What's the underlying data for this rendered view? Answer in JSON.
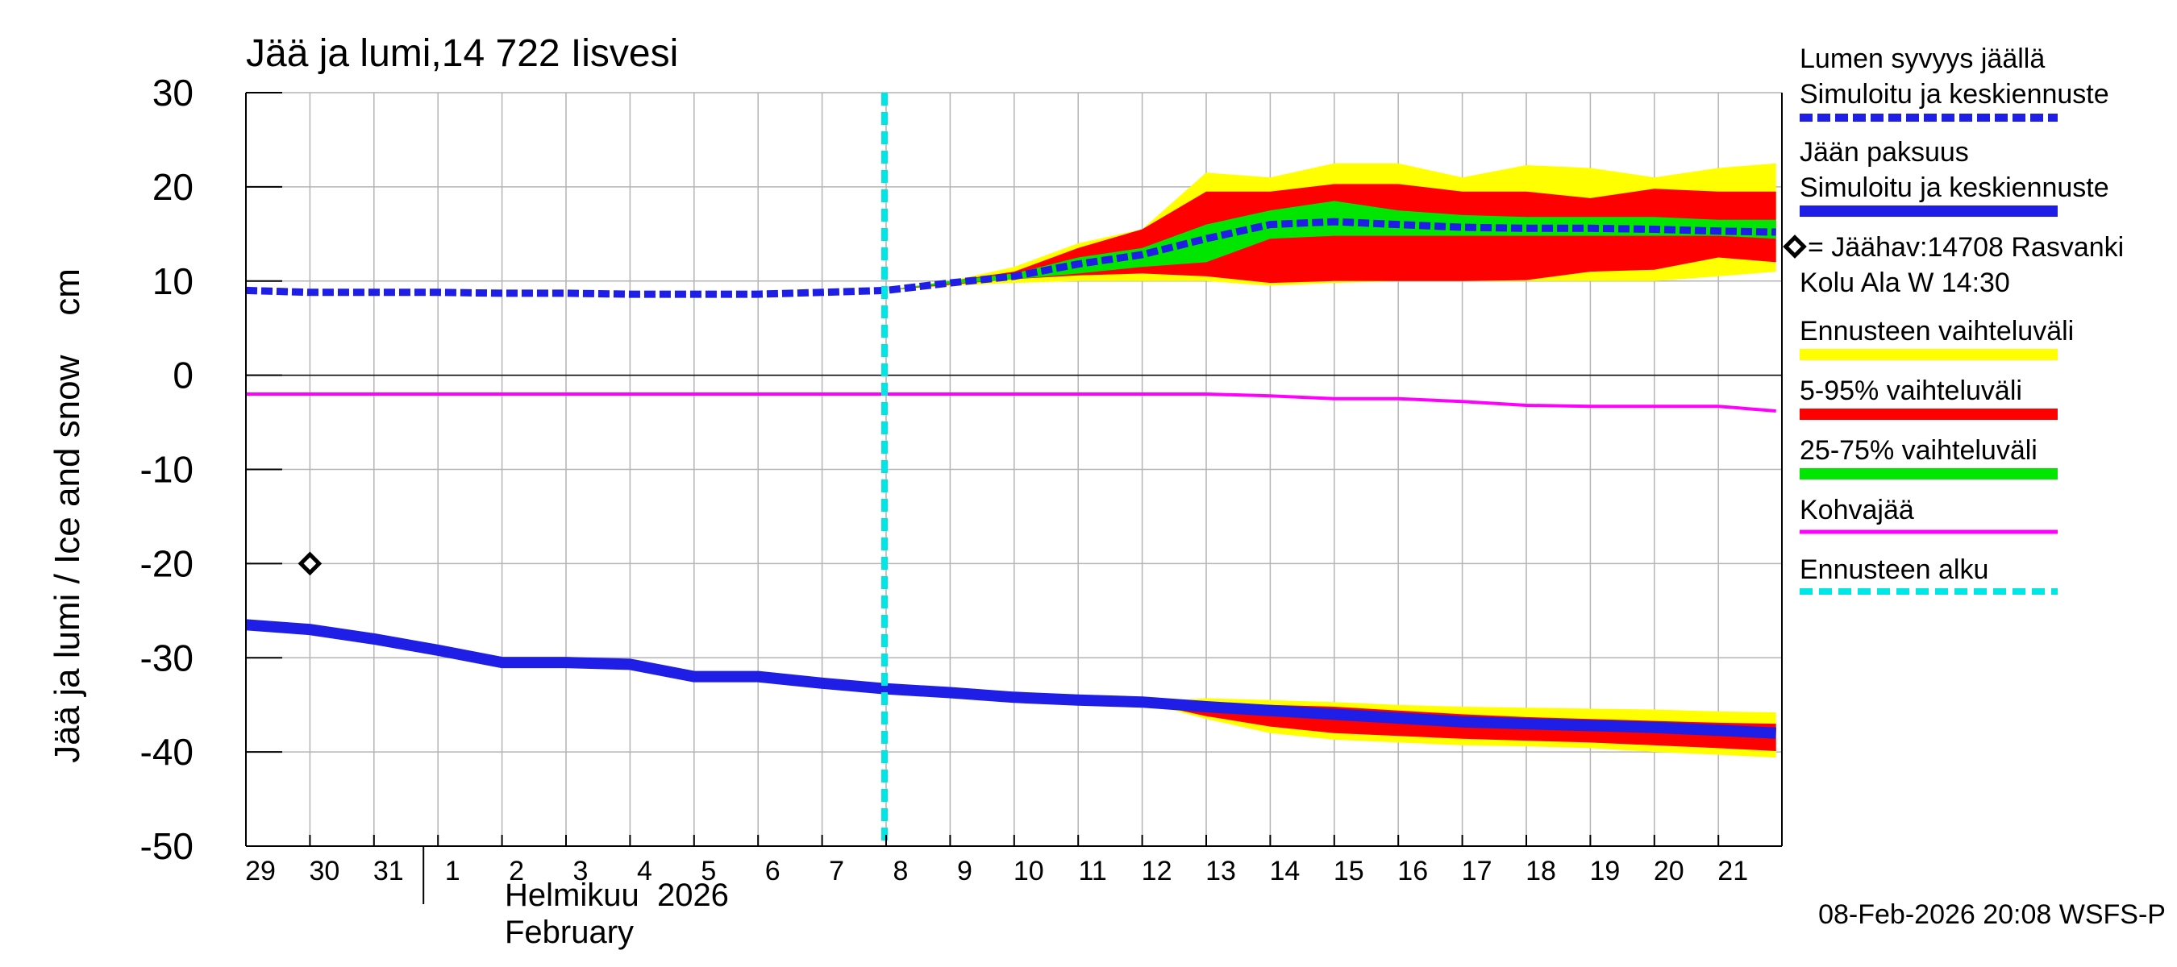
{
  "chart_data": {
    "type": "area",
    "title": "Jää ja lumi,14 722 Iisvesi",
    "ylabel": "Jää ja lumi / Ice and snow    cm",
    "ylim": [
      -50,
      30
    ],
    "yticks": [
      30,
      20,
      10,
      0,
      -10,
      -20,
      -30,
      -40,
      -50
    ],
    "ytick_labels": [
      "30",
      "20",
      "10",
      "0",
      "-10",
      "-20",
      "-30",
      "-40",
      "-50"
    ],
    "xlim": [
      0,
      24
    ],
    "xtick_labels": [
      {
        "x": 0,
        "label": "29"
      },
      {
        "x": 1,
        "label": "30"
      },
      {
        "x": 2,
        "label": "31"
      },
      {
        "x": 3,
        "label": "1"
      },
      {
        "x": 4,
        "label": "2"
      },
      {
        "x": 5,
        "label": "3"
      },
      {
        "x": 6,
        "label": "4"
      },
      {
        "x": 7,
        "label": "5"
      },
      {
        "x": 8,
        "label": "6"
      },
      {
        "x": 9,
        "label": "7"
      },
      {
        "x": 10,
        "label": "8"
      },
      {
        "x": 11,
        "label": "9"
      },
      {
        "x": 12,
        "label": "10"
      },
      {
        "x": 13,
        "label": "11"
      },
      {
        "x": 14,
        "label": "12"
      },
      {
        "x": 15,
        "label": "13"
      },
      {
        "x": 16,
        "label": "14"
      },
      {
        "x": 17,
        "label": "15"
      },
      {
        "x": 18,
        "label": "16"
      },
      {
        "x": 19,
        "label": "17"
      },
      {
        "x": 20,
        "label": "18"
      },
      {
        "x": 21,
        "label": "19"
      },
      {
        "x": 22,
        "label": "20"
      },
      {
        "x": 23,
        "label": "21"
      }
    ],
    "month_separator_x": 3,
    "month_label_fi": "Helmikuu  2026",
    "month_label_en": "February",
    "forecast_start_x": 10,
    "timestamp": "08-Feb-2026 20:08 WSFS-P",
    "legend": {
      "snow_header": "Lumen syvyys jäällä",
      "snow_label": "Simuloitu ja keskiennuste",
      "ice_header": "Jään paksuus",
      "ice_label": "Simuloitu ja keskiennuste",
      "obs_label": "= Jäähav:14708 Rasvanki",
      "obs_label2": "Kolu Ala W 14:30",
      "yellow_label": "Ennusteen vaihteluväli",
      "red_label": "5-95% vaihteluväli",
      "green_label": "25-75% vaihteluväli",
      "kohva_label": "Kohvajää",
      "start_label": "Ennusteen alku"
    },
    "colors": {
      "snow": "#1e1ee6",
      "ice": "#1e1ee6",
      "yellow": "#ffff00",
      "red": "#ff0000",
      "green": "#00e600",
      "kohva": "#ff00ff",
      "start": "#00e5e5"
    },
    "snow_depth": {
      "x": [
        0,
        1,
        2,
        3,
        4,
        5,
        6,
        7,
        8,
        9,
        10,
        11,
        12,
        13,
        14,
        15,
        16,
        17,
        18,
        19,
        20,
        21,
        22,
        23,
        23.9
      ],
      "y": [
        9,
        8.8,
        8.8,
        8.8,
        8.7,
        8.7,
        8.6,
        8.6,
        8.6,
        8.8,
        9,
        9.8,
        10.5,
        11.8,
        12.8,
        14.5,
        16,
        16.3,
        16,
        15.7,
        15.6,
        15.6,
        15.5,
        15.3,
        15.2
      ]
    },
    "snow_yellow_band": {
      "x": [
        10,
        11,
        12,
        13,
        14,
        15,
        16,
        17,
        18,
        19,
        20,
        21,
        22,
        23,
        23.9
      ],
      "low": [
        9,
        9.5,
        9.8,
        10,
        10,
        10,
        9.5,
        9.8,
        10,
        10,
        10,
        10,
        10,
        10.5,
        11
      ],
      "high": [
        9,
        10,
        11.5,
        14,
        15.5,
        21.5,
        21,
        22.5,
        22.5,
        21,
        22.3,
        22,
        21,
        22,
        22.5
      ]
    },
    "snow_red_band": {
      "x": [
        10,
        11,
        12,
        13,
        14,
        15,
        16,
        17,
        18,
        19,
        20,
        21,
        22,
        23,
        23.9
      ],
      "low": [
        9,
        9.6,
        10.2,
        10.6,
        10.8,
        10.5,
        9.8,
        10,
        10,
        10,
        10.1,
        11,
        11.2,
        12.5,
        12
      ]
    },
    "snow_red_band_high": [
      9,
      10,
      11,
      13.5,
      15.5,
      19.5,
      19.5,
      20.3,
      20.3,
      19.5,
      19.5,
      18.8,
      19.8,
      19.5,
      19.5
    ],
    "snow_green_band": {
      "x": [
        10,
        11,
        12,
        13,
        14,
        15,
        16,
        17,
        18,
        19,
        20,
        21,
        22,
        23,
        23.9
      ],
      "low": [
        9,
        9.7,
        10.2,
        10.8,
        11.5,
        12,
        14.5,
        14.8,
        14.8,
        14.8,
        14.8,
        14.8,
        14.8,
        14.8,
        14.5
      ],
      "high": [
        9,
        10,
        10.8,
        12.5,
        13.5,
        16,
        17.5,
        18.5,
        17.5,
        17,
        16.8,
        16.8,
        16.8,
        16.5,
        16.5
      ]
    },
    "kohva": {
      "x": [
        0,
        14,
        15,
        16,
        17,
        18,
        19,
        20,
        21,
        22,
        23,
        23.9
      ],
      "y": [
        -2,
        -2,
        -2,
        -2.2,
        -2.5,
        -2.5,
        -2.8,
        -3.2,
        -3.3,
        -3.3,
        -3.3,
        -3.8
      ]
    },
    "ice_thickness": {
      "x": [
        0,
        1,
        2,
        3,
        4,
        5,
        6,
        7,
        8,
        9,
        10,
        11,
        12,
        13,
        14,
        15,
        16,
        17,
        18,
        19,
        20,
        21,
        22,
        23,
        23.9
      ],
      "y": [
        -26.5,
        -27,
        -28,
        -29.2,
        -30.5,
        -30.5,
        -30.7,
        -32,
        -32,
        -32.7,
        -33.3,
        -33.7,
        -34.2,
        -34.5,
        -34.7,
        -35.2,
        -35.6,
        -36,
        -36.4,
        -36.8,
        -37,
        -37.2,
        -37.4,
        -37.7,
        -38
      ]
    },
    "ice_yellow_band": {
      "x": [
        14,
        15,
        16,
        17,
        18,
        19,
        20,
        21,
        22,
        23,
        23.9
      ],
      "high": [
        -34.7,
        -34.3,
        -34.5,
        -34.7,
        -35,
        -35.2,
        -35.3,
        -35.4,
        -35.5,
        -35.7,
        -35.8
      ],
      "low": [
        -34.7,
        -36.5,
        -38,
        -38.7,
        -39,
        -39.3,
        -39.4,
        -39.6,
        -40,
        -40.3,
        -40.6
      ]
    },
    "ice_red_band": {
      "x": [
        14,
        15,
        16,
        17,
        18,
        19,
        20,
        21,
        22,
        23,
        23.9
      ],
      "high": [
        -34.7,
        -34.8,
        -35,
        -35.2,
        -35.6,
        -36,
        -36.3,
        -36.5,
        -36.7,
        -36.9,
        -37
      ],
      "low": [
        -34.7,
        -36.2,
        -37.3,
        -38,
        -38.3,
        -38.6,
        -38.8,
        -39,
        -39.3,
        -39.6,
        -39.9
      ]
    },
    "observations": [
      {
        "x": 1,
        "y": -20
      }
    ]
  }
}
